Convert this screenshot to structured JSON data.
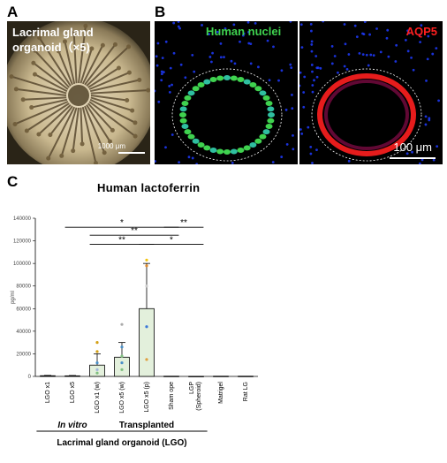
{
  "panels": {
    "a": {
      "letter": "A",
      "caption_line1": "Lacrimal gland",
      "caption_line2": "organoid（×5)",
      "scale_label": "1000 μm"
    },
    "b": {
      "letter": "B",
      "left_label": "Human nuclei",
      "right_label": "AQP5",
      "scale_label": "100 μm",
      "colors": {
        "nuclei": "#3fd24f",
        "aqp5": "#ff1f1f",
        "dapi": "#1f3bff"
      }
    },
    "c": {
      "letter": "C"
    }
  },
  "chart_data": {
    "type": "bar",
    "title": "Human  lactoferrin",
    "ylabel": "pg/ml",
    "xlabel": "Lacrimal gland organoid (LGO)",
    "ylim": [
      0,
      140000
    ],
    "yticks": [
      0,
      20000,
      40000,
      60000,
      80000,
      100000,
      120000,
      140000
    ],
    "grid": false,
    "categories": [
      "LGO x1",
      "LGO x5",
      "LGO x1 (w)",
      "LGO x5 (w)",
      "LGO x5 (p)",
      "Sham ope",
      "LGP\n(Spheroid)",
      "Matrigel",
      "Rat LG"
    ],
    "values": [
      600,
      500,
      10000,
      17000,
      60000,
      200,
      100,
      200,
      200
    ],
    "errors": [
      300,
      300,
      10000,
      13000,
      40000,
      0,
      0,
      0,
      0
    ],
    "points": [
      [],
      [],
      [
        {
          "v": 30000,
          "c": "#d4a017"
        },
        {
          "v": 22000,
          "c": "#d4a017"
        },
        {
          "v": 12000,
          "c": "#4a90c8"
        },
        {
          "v": 6000,
          "c": "#9fb5d9"
        },
        {
          "v": 3000,
          "c": "#7fbf7f"
        }
      ],
      [
        {
          "v": 46000,
          "c": "#aaaaaa"
        },
        {
          "v": 26000,
          "c": "#4a90c8"
        },
        {
          "v": 18000,
          "c": "#7fbf7f"
        },
        {
          "v": 12000,
          "c": "#4a90c8"
        },
        {
          "v": 6000,
          "c": "#7fbf7f"
        }
      ],
      [
        {
          "v": 103000,
          "c": "#f2c40f"
        },
        {
          "v": 98000,
          "c": "#e08a2c"
        },
        {
          "v": 80000,
          "c": "#cccccc"
        },
        {
          "v": 44000,
          "c": "#3c78d8"
        },
        {
          "v": 15000,
          "c": "#e0a040"
        }
      ],
      [],
      [],
      [],
      []
    ],
    "significance": [
      {
        "from": 1,
        "to": 5,
        "v": 132000,
        "label": "*"
      },
      {
        "from": 5,
        "to": 6,
        "v": 132000,
        "label": "**"
      },
      {
        "from": 2,
        "to": 5,
        "v": 125000,
        "label": "**"
      },
      {
        "from": 2,
        "to": 4,
        "v": 117000,
        "label": "**"
      },
      {
        "from": 4,
        "to": 6,
        "v": 117000,
        "label": "*"
      }
    ],
    "groups": [
      {
        "label": "In vitro",
        "from": 0,
        "to": 2,
        "italic": true
      },
      {
        "label": "Transplanted",
        "from": 2,
        "to": 6,
        "italic": false
      }
    ],
    "bar_fill": "#e3f0dc",
    "bar_stroke": "#000000"
  }
}
